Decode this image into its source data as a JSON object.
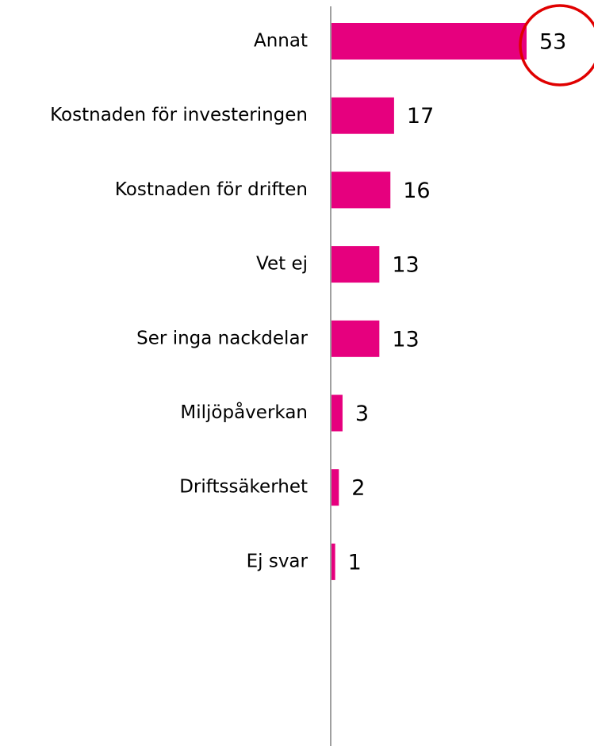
{
  "chart_data": {
    "type": "bar",
    "orientation": "horizontal",
    "categories": [
      "Annat",
      "Kostnaden för investeringen",
      "Kostnaden för driften",
      "Vet ej",
      "Ser inga nackdelar",
      "Miljöpåverkan",
      "Driftssäkerhet",
      "Ej svar"
    ],
    "values": [
      53,
      17,
      16,
      13,
      13,
      3,
      2,
      1
    ],
    "color": "#e6007e"
  }
}
